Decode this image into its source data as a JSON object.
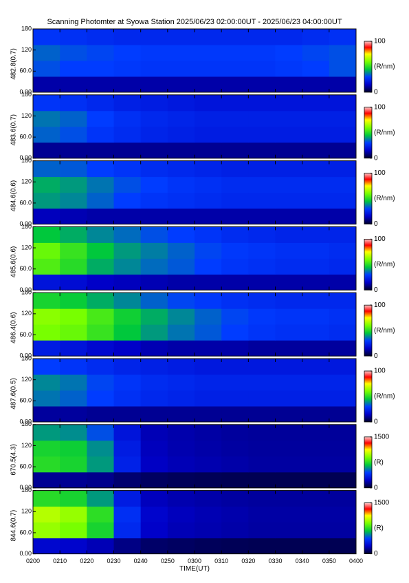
{
  "title": "Scanning Photomter at Syowa Station 2025/06/23 02:00:00UT - 2025/06/23 04:00:00UT",
  "chart_data": [
    {
      "type": "heatmap",
      "ylabel": "482.8(0.7)",
      "ylim": [
        0,
        180
      ],
      "yticks": [
        {
          "value": 0,
          "label": "0.00"
        },
        {
          "value": 60,
          "label": "60.0"
        },
        120,
        180
      ],
      "xlim": [
        0,
        120
      ],
      "clim": [
        0,
        100
      ],
      "cticks": [
        0,
        100
      ],
      "colorbar_label": "(R/nm)",
      "z": [
        [
          12,
          12,
          12,
          12,
          12,
          12,
          12,
          12,
          12,
          12,
          12,
          12
        ],
        [
          32,
          30,
          30,
          29,
          28,
          28,
          28,
          28,
          28,
          29,
          30,
          32
        ],
        [
          34,
          32,
          31,
          30,
          29,
          29,
          29,
          29,
          29,
          30,
          31,
          32
        ],
        [
          28,
          27,
          26,
          25,
          25,
          25,
          25,
          25,
          25,
          25,
          26,
          27
        ]
      ]
    },
    {
      "type": "heatmap",
      "ylabel": "483.6(0.7)",
      "ylim": [
        0,
        180
      ],
      "yticks": [
        {
          "value": 0,
          "label": "0.00"
        },
        {
          "value": 60,
          "label": "60.0"
        },
        120,
        180
      ],
      "xlim": [
        0,
        120
      ],
      "clim": [
        0,
        100
      ],
      "cticks": [
        0,
        100
      ],
      "colorbar_label": "(R/nm)",
      "z": [
        [
          10,
          10,
          10,
          10,
          10,
          10,
          10,
          10,
          10,
          10,
          10,
          10
        ],
        [
          34,
          32,
          28,
          26,
          24,
          23,
          22,
          22,
          22,
          22,
          22,
          22
        ],
        [
          36,
          34,
          30,
          27,
          25,
          24,
          23,
          23,
          23,
          23,
          23,
          23
        ],
        [
          28,
          27,
          25,
          23,
          22,
          21,
          20,
          20,
          20,
          20,
          20,
          20
        ]
      ]
    },
    {
      "type": "heatmap",
      "ylabel": "484.6(0.6)",
      "ylim": [
        0,
        180
      ],
      "yticks": [
        {
          "value": 0,
          "label": "0.00"
        },
        {
          "value": 60,
          "label": "60.0"
        },
        120,
        180
      ],
      "xlim": [
        0,
        120
      ],
      "clim": [
        0,
        100
      ],
      "cticks": [
        0,
        100
      ],
      "colorbar_label": "(R/nm)",
      "z": [
        [
          14,
          13,
          12,
          12,
          12,
          12,
          12,
          12,
          12,
          12,
          12,
          12
        ],
        [
          40,
          38,
          34,
          30,
          28,
          27,
          26,
          25,
          25,
          25,
          25,
          25
        ],
        [
          42,
          40,
          36,
          32,
          30,
          28,
          27,
          26,
          26,
          26,
          26,
          26
        ],
        [
          34,
          33,
          30,
          28,
          26,
          25,
          24,
          23,
          23,
          23,
          23,
          23
        ]
      ]
    },
    {
      "type": "heatmap",
      "ylabel": "485.6(0.6)",
      "ylim": [
        0,
        180
      ],
      "yticks": [
        {
          "value": 0,
          "label": "0.00"
        },
        {
          "value": 60,
          "label": "60.0"
        },
        120,
        180
      ],
      "xlim": [
        0,
        120
      ],
      "clim": [
        0,
        100
      ],
      "cticks": [
        0,
        100
      ],
      "colorbar_label": "(R/nm)",
      "z": [
        [
          20,
          18,
          15,
          14,
          13,
          12,
          12,
          12,
          12,
          12,
          12,
          12
        ],
        [
          55,
          50,
          42,
          38,
          35,
          33,
          30,
          28,
          27,
          26,
          26,
          25
        ],
        [
          58,
          52,
          45,
          40,
          37,
          34,
          31,
          29,
          28,
          27,
          27,
          26
        ],
        [
          45,
          42,
          38,
          35,
          32,
          30,
          28,
          26,
          25,
          24,
          24,
          24
        ]
      ]
    },
    {
      "type": "heatmap",
      "ylabel": "486.4(0.6)",
      "ylim": [
        0,
        180
      ],
      "yticks": [
        {
          "value": 0,
          "label": "0.00"
        },
        {
          "value": 60,
          "label": "60.0"
        },
        120,
        180
      ],
      "xlim": [
        0,
        120
      ],
      "clim": [
        0,
        100
      ],
      "cticks": [
        0,
        100
      ],
      "colorbar_label": "(R/nm)",
      "z": [
        [
          22,
          20,
          17,
          15,
          13,
          12,
          12,
          12,
          11,
          11,
          11,
          11
        ],
        [
          60,
          58,
          52,
          45,
          40,
          36,
          33,
          30,
          28,
          27,
          27,
          26
        ],
        [
          62,
          60,
          54,
          47,
          42,
          38,
          34,
          31,
          29,
          28,
          28,
          27
        ],
        [
          48,
          46,
          42,
          38,
          34,
          31,
          29,
          27,
          26,
          25,
          25,
          25
        ]
      ]
    },
    {
      "type": "heatmap",
      "ylabel": "487.6(0.5)",
      "ylim": [
        0,
        180
      ],
      "yticks": [
        {
          "value": 0,
          "label": "0.00"
        },
        {
          "value": 60,
          "label": "60.0"
        },
        120,
        180
      ],
      "xlim": [
        0,
        120
      ],
      "clim": [
        0,
        100
      ],
      "cticks": [
        0,
        100
      ],
      "colorbar_label": "(R/nm)",
      "z": [
        [
          11,
          11,
          10,
          10,
          10,
          10,
          10,
          10,
          10,
          10,
          10,
          10
        ],
        [
          36,
          34,
          30,
          27,
          25,
          24,
          23,
          23,
          23,
          23,
          23,
          23
        ],
        [
          38,
          36,
          31,
          28,
          26,
          25,
          24,
          24,
          24,
          24,
          24,
          24
        ],
        [
          30,
          28,
          26,
          24,
          23,
          22,
          21,
          21,
          21,
          21,
          21,
          21
        ]
      ]
    },
    {
      "type": "heatmap",
      "ylabel": "670.5(4.3)",
      "ylim": [
        0,
        180
      ],
      "yticks": [
        {
          "value": 0,
          "label": "0.00"
        },
        {
          "value": 60,
          "label": "60.0"
        },
        120,
        180
      ],
      "xlim": [
        0,
        120
      ],
      "clim": [
        0,
        1500
      ],
      "cticks": [
        0,
        1500
      ],
      "colorbar_label": "(R)",
      "z": [
        [
          150,
          150,
          140,
          100,
          80,
          70,
          65,
          60,
          60,
          60,
          60,
          60
        ],
        [
          750,
          720,
          600,
          350,
          220,
          200,
          190,
          180,
          170,
          170,
          170,
          170
        ],
        [
          720,
          700,
          580,
          330,
          210,
          190,
          180,
          170,
          165,
          165,
          165,
          165
        ],
        [
          600,
          580,
          480,
          300,
          200,
          185,
          175,
          165,
          160,
          160,
          160,
          160
        ]
      ]
    },
    {
      "type": "heatmap",
      "ylabel": "844.6(0.7)",
      "ylim": [
        0,
        180
      ],
      "yticks": [
        {
          "value": 0,
          "label": "0.00"
        },
        {
          "value": 60,
          "label": "60.0"
        },
        120,
        180
      ],
      "xlim": [
        0,
        120
      ],
      "clim": [
        0,
        1500
      ],
      "cticks": [
        0,
        1500
      ],
      "colorbar_label": "(R)",
      "xlabel": "TIME(UT)",
      "xticks": [
        {
          "value": 0,
          "label": "0200"
        },
        {
          "value": 10,
          "label": "0210"
        },
        {
          "value": 20,
          "label": "0220"
        },
        {
          "value": 30,
          "label": "0230"
        },
        {
          "value": 40,
          "label": "0240"
        },
        {
          "value": 50,
          "label": "0250"
        },
        {
          "value": 60,
          "label": "0300"
        },
        {
          "value": 70,
          "label": "0310"
        },
        {
          "value": 80,
          "label": "0320"
        },
        {
          "value": 90,
          "label": "0330"
        },
        {
          "value": 100,
          "label": "0340"
        },
        {
          "value": 110,
          "label": "0350"
        },
        {
          "value": 120,
          "label": "0400"
        }
      ],
      "z": [
        [
          250,
          240,
          200,
          130,
          90,
          80,
          70,
          65,
          60,
          60,
          60,
          60
        ],
        [
          950,
          900,
          720,
          380,
          230,
          200,
          190,
          180,
          170,
          170,
          170,
          170
        ],
        [
          1000,
          950,
          760,
          400,
          240,
          210,
          195,
          185,
          175,
          175,
          175,
          175
        ],
        [
          750,
          720,
          600,
          330,
          210,
          190,
          180,
          170,
          165,
          165,
          165,
          165
        ]
      ]
    }
  ]
}
